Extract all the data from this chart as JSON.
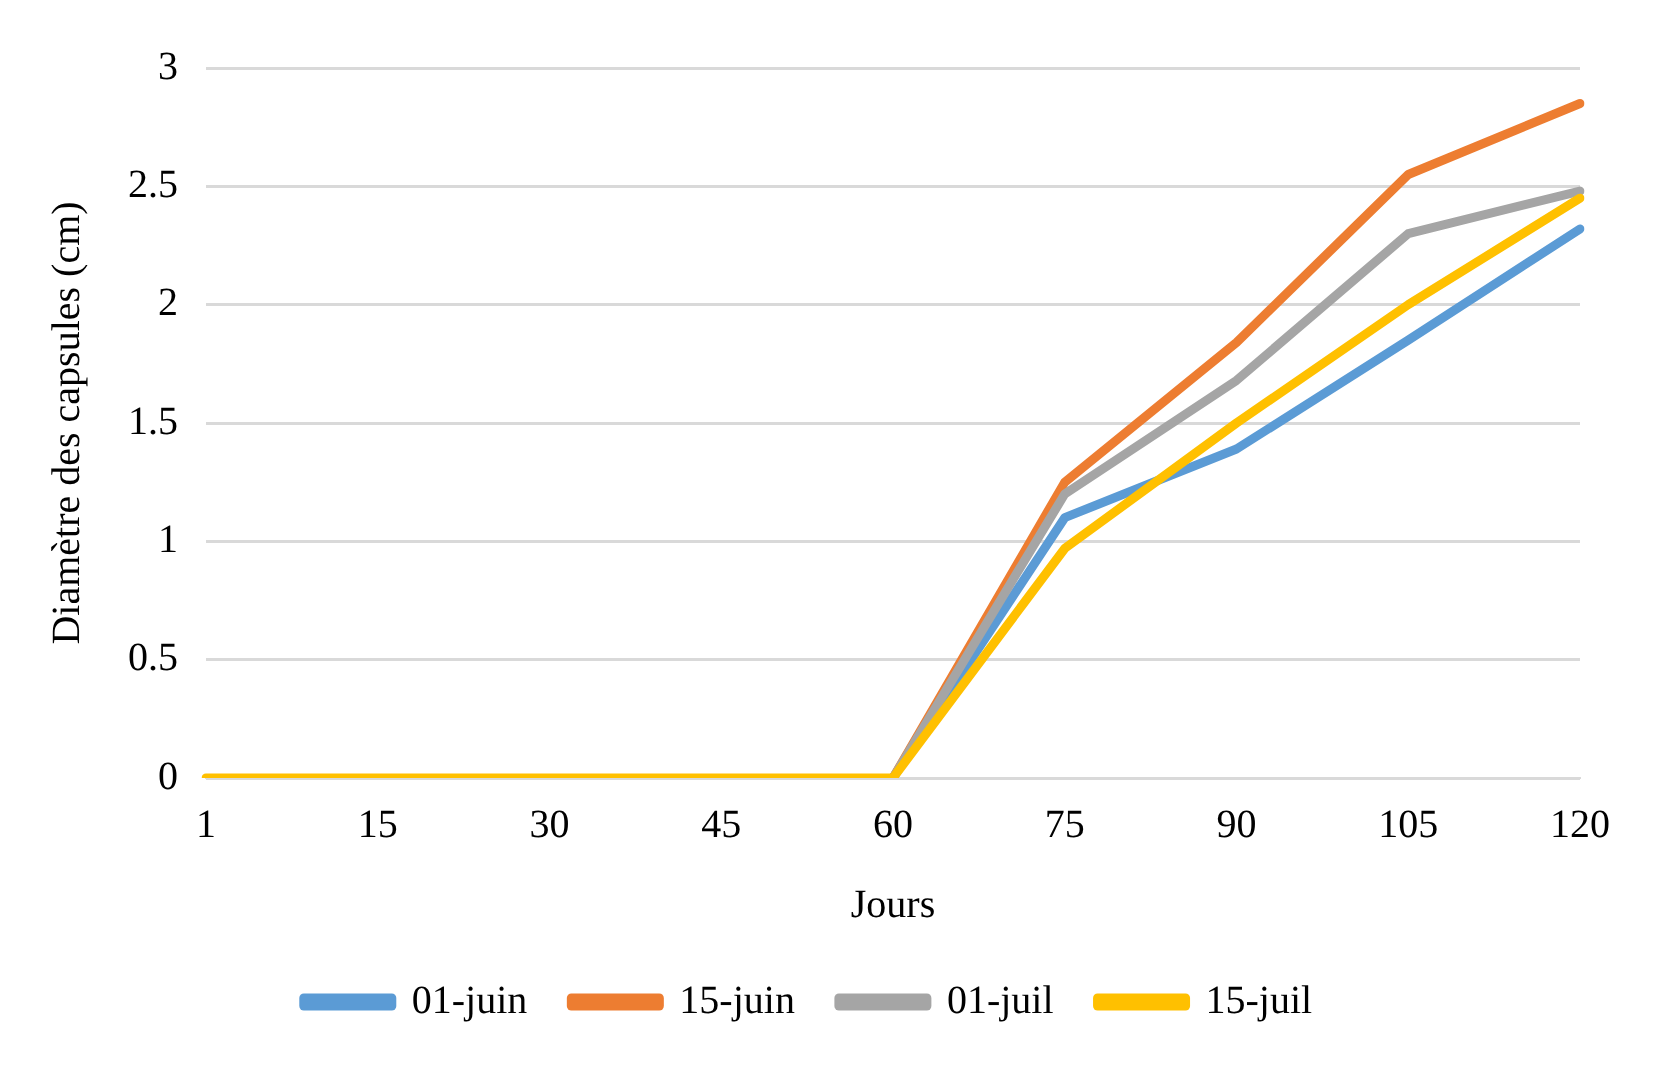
{
  "chart_data": {
    "type": "line",
    "xlabel": "Jours",
    "ylabel": "Diamètre des capsules (cm)",
    "categories": [
      "1",
      "15",
      "30",
      "45",
      "60",
      "75",
      "90",
      "105",
      "120"
    ],
    "series": [
      {
        "name": "01-juin",
        "color": "#5b9bd5",
        "values": [
          null,
          null,
          null,
          null,
          0,
          1.1,
          1.39,
          1.85,
          2.32
        ]
      },
      {
        "name": "15-juin",
        "color": "#ed7d31",
        "values": [
          null,
          null,
          null,
          null,
          0,
          1.25,
          1.84,
          2.55,
          2.85
        ]
      },
      {
        "name": "01-juil",
        "color": "#a5a5a5",
        "values": [
          null,
          null,
          null,
          null,
          0,
          1.2,
          1.68,
          2.3,
          2.48
        ]
      },
      {
        "name": "15-juil",
        "color": "#ffc000",
        "values": [
          0,
          0,
          0,
          0,
          0,
          0.97,
          1.5,
          2.0,
          2.45
        ]
      }
    ],
    "ylim": [
      0,
      3
    ],
    "yticks": [
      0,
      0.5,
      1,
      1.5,
      2,
      2.5,
      3
    ],
    "grid": "y",
    "legend": "bottom",
    "marker": "none",
    "line_style": "solid"
  }
}
